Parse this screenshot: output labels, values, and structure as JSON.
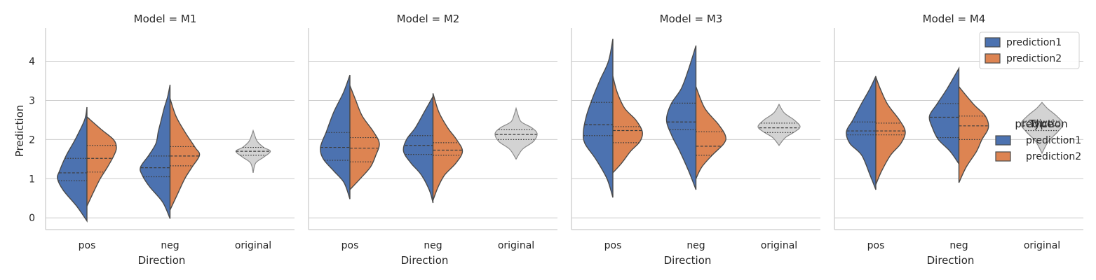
{
  "chart_data": {
    "type": "violin",
    "facet_titles": [
      "Model = M1",
      "Model = M2",
      "Model = M3",
      "Model = M4"
    ],
    "categories": [
      "pos",
      "neg",
      "original"
    ],
    "xlabel": "Direction",
    "ylabel": "Prediction",
    "ylim": [
      -0.3,
      4.85
    ],
    "yticks": [
      "0",
      "1",
      "2",
      "3",
      "4"
    ],
    "grid": "horizontal",
    "colors": {
      "prediction1": "#4c72b0",
      "prediction2": "#dd8452",
      "original": "#d3d3d3",
      "edge": "#4a4a4a"
    },
    "legend": {
      "title": "Type",
      "title_overlap": "prediction",
      "entries": [
        "prediction1",
        "prediction2"
      ],
      "inner_placement": "upper right of Model = M4",
      "outer_placement": "right"
    },
    "facets": [
      {
        "model": "M1",
        "groups": {
          "pos": {
            "prediction1": {
              "min": -0.08,
              "max": 2.83,
              "profile": [
                [
                  -0.08,
                  0.0
                ],
                [
                  0.3,
                  0.35
                ],
                [
                  0.7,
                  0.8
                ],
                [
                  1.0,
                  1.0
                ],
                [
                  1.2,
                  0.93
                ],
                [
                  1.6,
                  0.7
                ],
                [
                  2.0,
                  0.4
                ],
                [
                  2.5,
                  0.08
                ],
                [
                  2.83,
                  0.0
                ]
              ],
              "q1": 0.95,
              "median": 1.15,
              "q3": 1.52
            },
            "prediction2": {
              "min": 0.3,
              "max": 2.58,
              "profile": [
                [
                  0.3,
                  0.0
                ],
                [
                  0.7,
                  0.25
                ],
                [
                  1.0,
                  0.45
                ],
                [
                  1.3,
                  0.7
                ],
                [
                  1.6,
                  0.92
                ],
                [
                  1.8,
                  1.0
                ],
                [
                  2.0,
                  0.9
                ],
                [
                  2.25,
                  0.5
                ],
                [
                  2.58,
                  0.0
                ]
              ],
              "q1": 1.17,
              "median": 1.52,
              "q3": 1.85
            }
          },
          "neg": {
            "prediction1": {
              "min": -0.02,
              "max": 3.4,
              "profile": [
                [
                  -0.02,
                  0.0
                ],
                [
                  0.4,
                  0.25
                ],
                [
                  0.8,
                  0.7
                ],
                [
                  1.1,
                  0.95
                ],
                [
                  1.3,
                  1.0
                ],
                [
                  1.6,
                  0.72
                ],
                [
                  1.9,
                  0.48
                ],
                [
                  2.2,
                  0.4
                ],
                [
                  2.5,
                  0.3
                ],
                [
                  2.8,
                  0.2
                ],
                [
                  3.1,
                  0.08
                ],
                [
                  3.4,
                  0.0
                ]
              ],
              "q1": 1.05,
              "median": 1.28,
              "q3": 1.58
            },
            "prediction2": {
              "min": 0.2,
              "max": 3.05,
              "profile": [
                [
                  0.2,
                  0.0
                ],
                [
                  0.6,
                  0.25
                ],
                [
                  1.0,
                  0.5
                ],
                [
                  1.3,
                  0.75
                ],
                [
                  1.6,
                  1.0
                ],
                [
                  1.8,
                  0.85
                ],
                [
                  2.2,
                  0.5
                ],
                [
                  2.6,
                  0.2
                ],
                [
                  3.05,
                  0.0
                ]
              ],
              "q1": 1.33,
              "median": 1.58,
              "q3": 1.82
            }
          },
          "original": {
            "min": 1.15,
            "max": 2.23,
            "profile": [
              [
                1.15,
                0.0
              ],
              [
                1.4,
                0.12
              ],
              [
                1.55,
                0.5
              ],
              [
                1.7,
                0.82
              ],
              [
                1.8,
                0.5
              ],
              [
                1.95,
                0.2
              ],
              [
                2.1,
                0.08
              ],
              [
                2.23,
                0.0
              ]
            ],
            "q1": 1.6,
            "median": 1.7,
            "q3": 1.8
          }
        }
      },
      {
        "model": "M2",
        "groups": {
          "pos": {
            "prediction1": {
              "min": 0.48,
              "max": 3.65,
              "profile": [
                [
                  0.48,
                  0.0
                ],
                [
                  0.9,
                  0.2
                ],
                [
                  1.2,
                  0.55
                ],
                [
                  1.5,
                  0.9
                ],
                [
                  1.8,
                  1.0
                ],
                [
                  2.2,
                  0.8
                ],
                [
                  2.7,
                  0.55
                ],
                [
                  3.2,
                  0.22
                ],
                [
                  3.65,
                  0.0
                ]
              ],
              "q1": 1.47,
              "median": 1.8,
              "q3": 2.18
            },
            "prediction2": {
              "min": 0.72,
              "max": 3.38,
              "profile": [
                [
                  0.72,
                  0.0
                ],
                [
                  1.0,
                  0.35
                ],
                [
                  1.3,
                  0.7
                ],
                [
                  1.6,
                  0.88
                ],
                [
                  1.9,
                  1.0
                ],
                [
                  2.2,
                  0.8
                ],
                [
                  2.6,
                  0.42
                ],
                [
                  3.0,
                  0.2
                ],
                [
                  3.38,
                  0.0
                ]
              ],
              "q1": 1.43,
              "median": 1.78,
              "q3": 2.05
            }
          },
          "neg": {
            "prediction1": {
              "min": 0.38,
              "max": 3.1,
              "profile": [
                [
                  0.38,
                  0.0
                ],
                [
                  0.7,
                  0.12
                ],
                [
                  1.1,
                  0.4
                ],
                [
                  1.4,
                  0.75
                ],
                [
                  1.7,
                  1.0
                ],
                [
                  2.0,
                  0.9
                ],
                [
                  2.3,
                  0.6
                ],
                [
                  2.7,
                  0.3
                ],
                [
                  3.1,
                  0.0
                ]
              ],
              "q1": 1.62,
              "median": 1.85,
              "q3": 2.1
            },
            "prediction2": {
              "min": 0.45,
              "max": 3.18,
              "profile": [
                [
                  0.45,
                  0.0
                ],
                [
                  0.8,
                  0.18
                ],
                [
                  1.1,
                  0.4
                ],
                [
                  1.4,
                  0.78
                ],
                [
                  1.7,
                  1.0
                ],
                [
                  2.0,
                  0.8
                ],
                [
                  2.3,
                  0.5
                ],
                [
                  2.7,
                  0.2
                ],
                [
                  3.18,
                  0.0
                ]
              ],
              "q1": 1.6,
              "median": 1.73,
              "q3": 1.92
            }
          },
          "original": {
            "min": 1.5,
            "max": 2.8,
            "profile": [
              [
                1.5,
                0.0
              ],
              [
                1.75,
                0.3
              ],
              [
                1.95,
                0.82
              ],
              [
                2.15,
                1.0
              ],
              [
                2.3,
                0.75
              ],
              [
                2.45,
                0.25
              ],
              [
                2.62,
                0.1
              ],
              [
                2.8,
                0.0
              ]
            ],
            "q1": 2.0,
            "median": 2.13,
            "q3": 2.25
          }
        }
      },
      {
        "model": "M3",
        "groups": {
          "pos": {
            "prediction1": {
              "min": 0.52,
              "max": 4.57,
              "profile": [
                [
                  0.52,
                  0.0
                ],
                [
                  1.0,
                  0.2
                ],
                [
                  1.5,
                  0.58
                ],
                [
                  1.9,
                  0.95
                ],
                [
                  2.2,
                  1.0
                ],
                [
                  2.6,
                  0.9
                ],
                [
                  3.0,
                  0.72
                ],
                [
                  3.5,
                  0.45
                ],
                [
                  4.0,
                  0.15
                ],
                [
                  4.57,
                  0.0
                ]
              ],
              "q1": 2.1,
              "median": 2.38,
              "q3": 2.95
            },
            "prediction2": {
              "min": 1.15,
              "max": 3.62,
              "profile": [
                [
                  1.15,
                  0.0
                ],
                [
                  1.4,
                  0.3
                ],
                [
                  1.7,
                  0.6
                ],
                [
                  1.95,
                  0.92
                ],
                [
                  2.2,
                  1.0
                ],
                [
                  2.5,
                  0.78
                ],
                [
                  2.8,
                  0.4
                ],
                [
                  3.2,
                  0.15
                ],
                [
                  3.62,
                  0.0
                ]
              ],
              "q1": 1.92,
              "median": 2.23,
              "q3": 2.33
            }
          },
          "neg": {
            "prediction1": {
              "min": 0.72,
              "max": 4.4,
              "profile": [
                [
                  0.72,
                  0.0
                ],
                [
                  1.2,
                  0.25
                ],
                [
                  1.7,
                  0.55
                ],
                [
                  2.1,
                  0.82
                ],
                [
                  2.5,
                  1.0
                ],
                [
                  2.9,
                  0.85
                ],
                [
                  3.3,
                  0.5
                ],
                [
                  3.8,
                  0.25
                ],
                [
                  4.4,
                  0.0
                ]
              ],
              "q1": 2.25,
              "median": 2.45,
              "q3": 2.93
            },
            "prediction2": {
              "min": 1.0,
              "max": 3.35,
              "profile": [
                [
                  1.0,
                  0.0
                ],
                [
                  1.3,
                  0.2
                ],
                [
                  1.6,
                  0.55
                ],
                [
                  1.9,
                  0.95
                ],
                [
                  2.1,
                  1.0
                ],
                [
                  2.4,
                  0.75
                ],
                [
                  2.8,
                  0.3
                ],
                [
                  3.35,
                  0.0
                ]
              ],
              "q1": 1.6,
              "median": 1.83,
              "q3": 2.2
            }
          },
          "original": {
            "min": 1.85,
            "max": 2.9,
            "profile": [
              [
                1.85,
                0.0
              ],
              [
                2.05,
                0.3
              ],
              [
                2.2,
                0.75
              ],
              [
                2.33,
                1.0
              ],
              [
                2.5,
                0.72
              ],
              [
                2.68,
                0.25
              ],
              [
                2.9,
                0.0
              ]
            ],
            "q1": 2.18,
            "median": 2.3,
            "q3": 2.42
          }
        }
      },
      {
        "model": "M4",
        "groups": {
          "pos": {
            "prediction1": {
              "min": 0.72,
              "max": 3.62,
              "profile": [
                [
                  0.72,
                  0.0
                ],
                [
                  1.1,
                  0.2
                ],
                [
                  1.6,
                  0.48
                ],
                [
                  1.9,
                  0.88
                ],
                [
                  2.2,
                  1.0
                ],
                [
                  2.5,
                  0.78
                ],
                [
                  2.9,
                  0.5
                ],
                [
                  3.3,
                  0.2
                ],
                [
                  3.62,
                  0.0
                ]
              ],
              "q1": 2.12,
              "median": 2.22,
              "q3": 2.45
            },
            "prediction2": {
              "min": 0.85,
              "max": 3.6,
              "profile": [
                [
                  0.85,
                  0.0
                ],
                [
                  1.2,
                  0.2
                ],
                [
                  1.6,
                  0.5
                ],
                [
                  1.9,
                  0.85
                ],
                [
                  2.2,
                  1.0
                ],
                [
                  2.5,
                  0.8
                ],
                [
                  2.9,
                  0.4
                ],
                [
                  3.3,
                  0.15
                ],
                [
                  3.6,
                  0.0
                ]
              ],
              "q1": 2.12,
              "median": 2.22,
              "q3": 2.42
            }
          },
          "neg": {
            "prediction1": {
              "min": 1.38,
              "max": 3.82,
              "profile": [
                [
                  1.38,
                  0.0
                ],
                [
                  1.7,
                  0.3
                ],
                [
                  2.0,
                  0.7
                ],
                [
                  2.3,
                  0.9
                ],
                [
                  2.6,
                  1.0
                ],
                [
                  2.9,
                  0.75
                ],
                [
                  3.3,
                  0.4
                ],
                [
                  3.82,
                  0.0
                ]
              ],
              "q1": 2.05,
              "median": 2.57,
              "q3": 2.92
            },
            "prediction2": {
              "min": 0.9,
              "max": 3.35,
              "profile": [
                [
                  0.9,
                  0.0
                ],
                [
                  1.3,
                  0.25
                ],
                [
                  1.7,
                  0.6
                ],
                [
                  2.0,
                  0.78
                ],
                [
                  2.3,
                  1.0
                ],
                [
                  2.6,
                  0.9
                ],
                [
                  2.9,
                  0.5
                ],
                [
                  3.35,
                  0.0
                ]
              ],
              "q1": 2.0,
              "median": 2.35,
              "q3": 2.6
            }
          },
          "original": {
            "min": 1.65,
            "max": 2.95,
            "profile": [
              [
                1.65,
                0.0
              ],
              [
                1.95,
                0.3
              ],
              [
                2.2,
                0.75
              ],
              [
                2.4,
                1.0
              ],
              [
                2.6,
                0.7
              ],
              [
                2.8,
                0.25
              ],
              [
                2.95,
                0.0
              ]
            ],
            "q1": 2.23,
            "median": 2.35,
            "q3": 2.47
          }
        }
      }
    ]
  }
}
